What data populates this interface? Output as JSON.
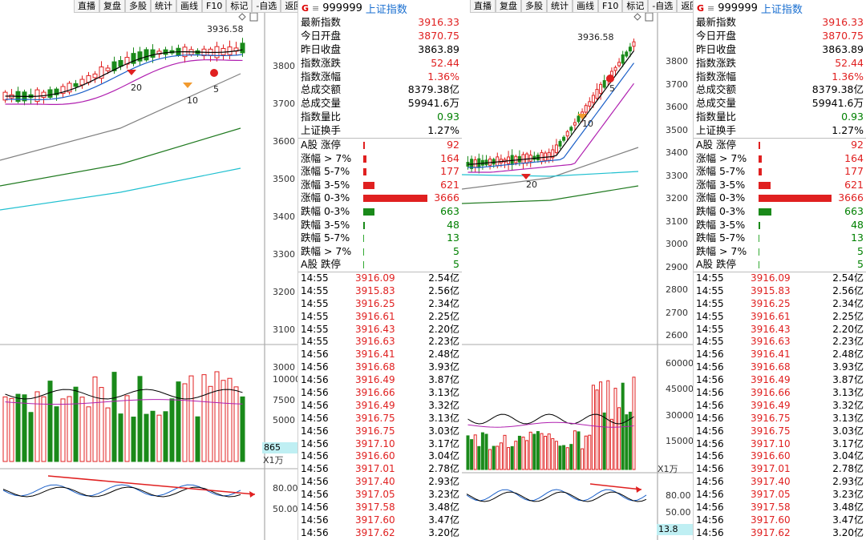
{
  "toolbar": [
    "直播",
    "复盘",
    "多股",
    "统计",
    "画线",
    "F10",
    "标记",
    "-自选",
    "返回"
  ],
  "header": {
    "logo": "G",
    "menu_icon": "≡",
    "code": "999999",
    "name": "上证指数"
  },
  "quote": [
    {
      "label": "最新指数",
      "value": "3916.33",
      "color": "red"
    },
    {
      "label": "今日开盘",
      "value": "3870.75",
      "color": "red"
    },
    {
      "label": "昨日收盘",
      "value": "3863.89",
      "color": "black"
    },
    {
      "label": "指数涨跌",
      "value": "52.44",
      "color": "red"
    },
    {
      "label": "指数涨幅",
      "value": "1.36%",
      "color": "red"
    },
    {
      "label": "总成交额",
      "value": "8379.38亿",
      "color": "black"
    },
    {
      "label": "总成交量",
      "value": "59941.6万",
      "color": "black"
    },
    {
      "label": "指数量比",
      "value": "0.93",
      "color": "green"
    },
    {
      "label": "上证换手",
      "value": "1.27%",
      "color": "black"
    }
  ],
  "breadth": [
    {
      "label": "A股 涨停",
      "value": "92",
      "dir": "up",
      "ratio": 0.025
    },
    {
      "label": "涨幅 > 7%",
      "value": "164",
      "dir": "up",
      "ratio": 0.045
    },
    {
      "label": "涨幅 5-7%",
      "value": "177",
      "dir": "up",
      "ratio": 0.048
    },
    {
      "label": "涨幅 3-5%",
      "value": "621",
      "dir": "up",
      "ratio": 0.17
    },
    {
      "label": "涨幅 0-3%",
      "value": "3666",
      "dir": "up",
      "ratio": 1.0
    },
    {
      "label": "跌幅 0-3%",
      "value": "663",
      "dir": "down",
      "ratio": 0.18
    },
    {
      "label": "跌幅 3-5%",
      "value": "48",
      "dir": "down",
      "ratio": 0.013
    },
    {
      "label": "跌幅 5-7%",
      "value": "13",
      "dir": "down",
      "ratio": 0.004
    },
    {
      "label": "跌幅 > 7%",
      "value": "5",
      "dir": "down",
      "ratio": 0.002
    },
    {
      "label": "A股 跌停",
      "value": "5",
      "dir": "down",
      "ratio": 0.002
    }
  ],
  "ticks": [
    {
      "time": "14:55",
      "price": "3916.09",
      "vol": "2.54亿"
    },
    {
      "time": "14:55",
      "price": "3915.83",
      "vol": "2.56亿"
    },
    {
      "time": "14:55",
      "price": "3916.25",
      "vol": "2.34亿"
    },
    {
      "time": "14:55",
      "price": "3916.61",
      "vol": "2.25亿"
    },
    {
      "time": "14:55",
      "price": "3916.43",
      "vol": "2.20亿"
    },
    {
      "time": "14:55",
      "price": "3916.63",
      "vol": "2.23亿"
    },
    {
      "time": "14:56",
      "price": "3916.41",
      "vol": "2.48亿"
    },
    {
      "time": "14:56",
      "price": "3916.68",
      "vol": "3.93亿"
    },
    {
      "time": "14:56",
      "price": "3916.49",
      "vol": "3.87亿"
    },
    {
      "time": "14:56",
      "price": "3916.66",
      "vol": "3.13亿"
    },
    {
      "time": "14:56",
      "price": "3916.49",
      "vol": "3.32亿"
    },
    {
      "time": "14:56",
      "price": "3916.75",
      "vol": "3.13亿"
    },
    {
      "time": "14:56",
      "price": "3916.75",
      "vol": "3.03亿"
    },
    {
      "time": "14:56",
      "price": "3917.10",
      "vol": "3.17亿"
    },
    {
      "time": "14:56",
      "price": "3916.60",
      "vol": "3.04亿"
    },
    {
      "time": "14:56",
      "price": "3917.01",
      "vol": "2.78亿"
    },
    {
      "time": "14:56",
      "price": "3917.40",
      "vol": "2.93亿"
    },
    {
      "time": "14:56",
      "price": "3917.05",
      "vol": "3.23亿"
    },
    {
      "time": "14:56",
      "price": "3917.58",
      "vol": "3.48亿"
    },
    {
      "time": "14:56",
      "price": "3917.60",
      "vol": "3.47亿"
    },
    {
      "time": "14:56",
      "price": "3917.62",
      "vol": "3.20亿"
    }
  ],
  "left_chart": {
    "price_axis": [
      "3800",
      "3700",
      "3600",
      "3500",
      "3400",
      "3300",
      "3200",
      "3100",
      "3000"
    ],
    "vol_axis": [
      "10000",
      "7500",
      "5000"
    ],
    "osc_axis": [
      "80.00",
      "50.00"
    ],
    "high_label": "3936.58",
    "markers": [
      "20",
      "10",
      "5"
    ],
    "vol_box": "865",
    "unit": "X1万"
  },
  "right_chart": {
    "price_axis": [
      "3800",
      "3700",
      "3600",
      "3500",
      "3400",
      "3300",
      "3200",
      "3100",
      "3000",
      "2900",
      "2800",
      "2700",
      "2600"
    ],
    "vol_axis": [
      "60000",
      "45000",
      "30000",
      "15000"
    ],
    "osc_axis": [
      "80.00",
      "50.00"
    ],
    "high_label": "3936.58",
    "markers": [
      "20",
      "10",
      "5"
    ],
    "vol_box": "13.8",
    "unit": "X1万"
  },
  "colors": {
    "up": "#e02020",
    "down": "#1a8a1a",
    "ma5": "#000000",
    "ma10": "#1a5fc8",
    "ma20": "#b020b0",
    "ma60": "#808080",
    "ma120": "#207a20",
    "ma250": "#20c0d0"
  }
}
